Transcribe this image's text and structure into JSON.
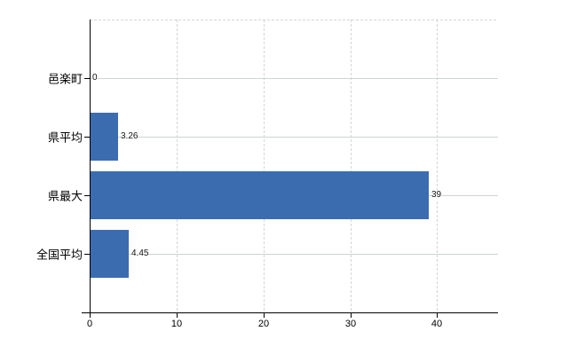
{
  "chart_data": {
    "type": "bar",
    "orientation": "horizontal",
    "title": "",
    "xlabel": "",
    "ylabel": "",
    "categories": [
      "邑楽町",
      "県平均",
      "県最大",
      "全国平均"
    ],
    "values": [
      0,
      3.26,
      39,
      4.45
    ],
    "value_labels": [
      "0",
      "3.26",
      "39",
      "4.45"
    ],
    "xticks": [
      0,
      10,
      20,
      30,
      40
    ],
    "xtick_labels": [
      "0",
      "10",
      "20",
      "30",
      "40"
    ],
    "xlim": [
      0,
      47
    ],
    "grid": true,
    "legend": "none",
    "colors": {
      "bar": "#3b6cb0",
      "axis": "#000000",
      "horizontal_grid": "#ccd5ce",
      "vertical_grid": "#d5d5d5",
      "background": "#ffffff",
      "text": "#000000"
    }
  }
}
